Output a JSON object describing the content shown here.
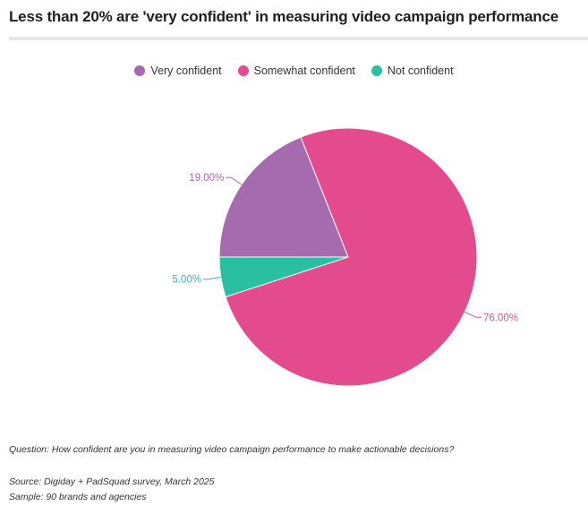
{
  "title": "Less than 20% are 'very confident' in measuring video campaign performance",
  "chart_data": {
    "type": "pie",
    "title": "Less than 20% are 'very confident' in measuring video campaign performance",
    "legend_position": "top",
    "slices": [
      {
        "label": "Very confident",
        "value": 19.0,
        "value_label": "19.00%",
        "color": "#a66aae"
      },
      {
        "label": "Somewhat confident",
        "value": 76.0,
        "value_label": "76.00%",
        "color": "#e34b8e"
      },
      {
        "label": "Not confident",
        "value": 5.0,
        "value_label": "5.00%",
        "color": "#2bbfa1"
      }
    ]
  },
  "footer": {
    "question": "Question: How confident are you in measuring video campaign performance to make actionable decisions?",
    "source": "Source: Digiday + PadSquad survey, March 2025",
    "sample": "Sample: 90 brands and agencies"
  }
}
